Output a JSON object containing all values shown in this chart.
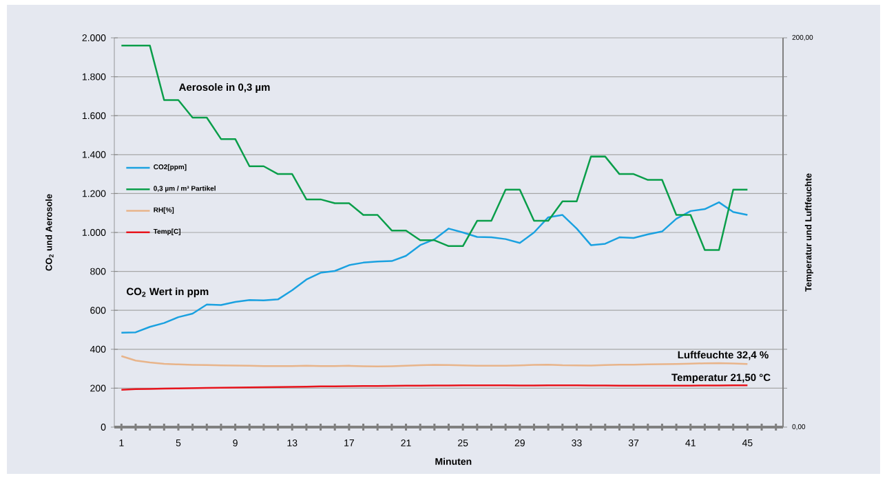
{
  "chart_data": {
    "type": "line",
    "xlabel": "Minuten",
    "ylabel": "CO$_{2}$ und Aerosole",
    "y2label": "Temperatur und Luftfeuchte",
    "x": [
      1,
      2,
      3,
      4,
      5,
      6,
      7,
      8,
      9,
      10,
      11,
      12,
      13,
      14,
      15,
      16,
      17,
      18,
      19,
      20,
      21,
      22,
      23,
      24,
      25,
      26,
      27,
      28,
      29,
      30,
      31,
      32,
      33,
      34,
      35,
      36,
      37,
      38,
      39,
      40,
      41,
      42,
      43,
      44,
      45
    ],
    "series": [
      {
        "name": "CO2[ppm]",
        "color": "#1aa1e0",
        "values": [
          485,
          487,
          515,
          535,
          565,
          583,
          630,
          627,
          643,
          653,
          651,
          656,
          703,
          758,
          793,
          802,
          832,
          845,
          851,
          853,
          880,
          935,
          965,
          1020,
          1000,
          977,
          975,
          966,
          946,
          1000,
          1078,
          1090,
          1020,
          935,
          942,
          975,
          972,
          990,
          1005,
          1070,
          1110,
          1120,
          1155,
          1105,
          1090
        ]
      },
      {
        "name": "0,3 µm / m³ Partikel",
        "color": "#0a9e4a",
        "values": [
          1960,
          1960,
          1960,
          1680,
          1680,
          1590,
          1590,
          1480,
          1480,
          1340,
          1340,
          1300,
          1300,
          1170,
          1170,
          1150,
          1150,
          1090,
          1090,
          1010,
          1010,
          960,
          960,
          930,
          930,
          1060,
          1060,
          1220,
          1220,
          1060,
          1060,
          1160,
          1160,
          1390,
          1390,
          1300,
          1300,
          1270,
          1270,
          1090,
          1090,
          910,
          910,
          1220,
          1220
        ]
      },
      {
        "name": "RH[%]",
        "color": "#e8b48a",
        "axis": "y2",
        "values": [
          36.5,
          34.2,
          33.2,
          32.5,
          32.2,
          32.0,
          31.9,
          31.7,
          31.6,
          31.5,
          31.4,
          31.4,
          31.4,
          31.5,
          31.4,
          31.4,
          31.5,
          31.3,
          31.2,
          31.3,
          31.5,
          31.8,
          32.0,
          31.9,
          31.7,
          31.5,
          31.5,
          31.5,
          31.7,
          32.0,
          32.1,
          31.8,
          31.7,
          31.6,
          31.9,
          32.1,
          32.1,
          32.2,
          32.3,
          32.4,
          32.6,
          32.8,
          32.9,
          32.7,
          32.4
        ]
      },
      {
        "name": "Temp[C]",
        "color": "#e8141c",
        "axis": "y2",
        "values": [
          19.2,
          19.5,
          19.6,
          19.8,
          19.9,
          20.0,
          20.1,
          20.2,
          20.3,
          20.4,
          20.5,
          20.6,
          20.7,
          20.8,
          20.9,
          20.9,
          21.0,
          21.1,
          21.1,
          21.2,
          21.3,
          21.3,
          21.4,
          21.4,
          21.5,
          21.5,
          21.5,
          21.5,
          21.4,
          21.4,
          21.5,
          21.5,
          21.5,
          21.4,
          21.4,
          21.3,
          21.3,
          21.3,
          21.3,
          21.3,
          21.3,
          21.4,
          21.4,
          21.5,
          21.5
        ]
      }
    ],
    "xlim": [
      0.5,
      47.5
    ],
    "xticks": [
      1,
      {
        "value": 2,
        "label": null
      },
      {
        "value": 3,
        "label": null
      },
      {
        "value": 4,
        "label": null
      },
      5,
      {
        "value": 6,
        "label": null
      },
      {
        "value": 7,
        "label": null
      },
      {
        "value": 8,
        "label": null
      },
      9,
      {
        "value": 10,
        "label": null
      },
      {
        "value": 11,
        "label": null
      },
      {
        "value": 12,
        "label": null
      },
      13,
      {
        "value": 14,
        "label": null
      },
      {
        "value": 15,
        "label": null
      },
      {
        "value": 16,
        "label": null
      },
      17,
      {
        "value": 18,
        "label": null
      },
      {
        "value": 19,
        "label": null
      },
      {
        "value": 20,
        "label": null
      },
      21,
      {
        "value": 22,
        "label": null
      },
      {
        "value": 23,
        "label": null
      },
      {
        "value": 24,
        "label": null
      },
      25,
      {
        "value": 26,
        "label": null
      },
      {
        "value": 27,
        "label": null
      },
      {
        "value": 28,
        "label": null
      },
      29,
      {
        "value": 30,
        "label": null
      },
      {
        "value": 31,
        "label": null
      },
      {
        "value": 32,
        "label": null
      },
      33,
      {
        "value": 34,
        "label": null
      },
      {
        "value": 35,
        "label": null
      },
      {
        "value": 36,
        "label": null
      },
      37,
      {
        "value": 38,
        "label": null
      },
      {
        "value": 39,
        "label": null
      },
      {
        "value": 40,
        "label": null
      },
      41,
      {
        "value": 42,
        "label": null
      },
      {
        "value": 43,
        "label": null
      },
      {
        "value": 44,
        "label": null
      },
      45,
      {
        "value": 46,
        "label": null
      },
      {
        "value": 47,
        "label": null
      }
    ],
    "ylim": [
      0,
      2000
    ],
    "yticks": [
      0,
      200,
      400,
      600,
      800,
      {
        "value": 1000,
        "label": "1.000"
      },
      {
        "value": 1200,
        "label": "1.200"
      },
      {
        "value": 1400,
        "label": "1.400"
      },
      {
        "value": 1600,
        "label": "1.600"
      },
      {
        "value": 1800,
        "label": "1.800"
      },
      {
        "value": 2000,
        "label": "2.000"
      }
    ],
    "y2lim": [
      0,
      200
    ],
    "y2ticks": [
      {
        "value": 0,
        "label": "0,00"
      },
      {
        "value": 20,
        "label": null
      },
      {
        "value": 40,
        "label": null
      },
      {
        "value": 60,
        "label": null
      },
      {
        "value": 80,
        "label": null
      },
      {
        "value": 100,
        "label": null
      },
      {
        "value": 120,
        "label": null
      },
      {
        "value": 140,
        "label": null
      },
      {
        "value": 160,
        "label": null
      },
      {
        "value": 180,
        "label": null
      },
      {
        "value": 200,
        "label": "200,00"
      }
    ],
    "annotations": [
      "Aerosole in 0,3 µm",
      "CO$_{2}$ Wert in ppm",
      "Luftfeuchte 32,4  %",
      "Temperatur 21,50 °C"
    ],
    "grid": "y",
    "legend": "left"
  }
}
